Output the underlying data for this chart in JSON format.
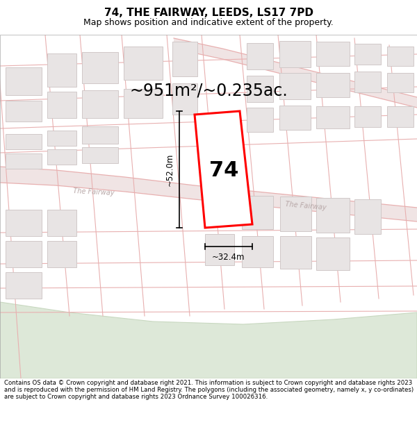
{
  "title": "74, THE FAIRWAY, LEEDS, LS17 7PD",
  "subtitle": "Map shows position and indicative extent of the property.",
  "area_text": "~951m²/~0.235ac.",
  "property_number": "74",
  "dim_width": "~32.4m",
  "dim_height": "~52.0m",
  "footer": "Contains OS data © Crown copyright and database right 2021. This information is subject to Crown copyright and database rights 2023 and is reproduced with the permission of HM Land Registry. The polygons (including the associated geometry, namely x, y co-ordinates) are subject to Crown copyright and database rights 2023 Ordnance Survey 100026316.",
  "bg_color": "#ffffff",
  "plot_color": "#ff0000",
  "road_fill": "#f5e8e8",
  "road_line": "#e8b0b0",
  "building_fill": "#e8e4e4",
  "building_edge": "#d4c8c8",
  "green_fill": "#dde8d8",
  "green_edge": "#c8d8c0",
  "road_label_color": "#b8a8a8",
  "title_fontsize": 11,
  "subtitle_fontsize": 9,
  "area_fontsize": 17,
  "footer_fontsize": 6.2
}
